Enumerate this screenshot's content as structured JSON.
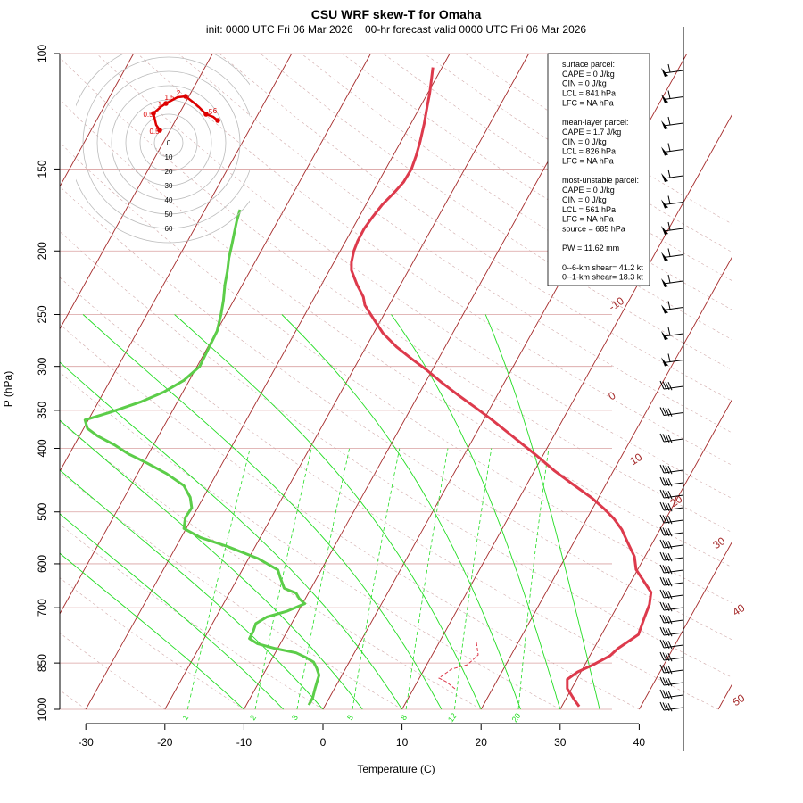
{
  "chart_data": {
    "type": "line",
    "title": "CSU WRF skew-T for Omaha",
    "subtitle": "init: 0000 UTC Fri 06 Mar 2026    00-hr forecast valid 0000 UTC Fri 06 Mar 2026",
    "xlabel": "Temperature (C)",
    "ylabel": "P (hPa)",
    "x_ticks": [
      "-30",
      "-20",
      "-10",
      "0",
      "10",
      "20",
      "30",
      "40"
    ],
    "p_ticks": [
      "100",
      "150",
      "200",
      "250",
      "300",
      "350",
      "400",
      "500",
      "600",
      "700",
      "850",
      "1000"
    ],
    "xlim": [
      -33,
      52
    ],
    "plim": [
      100,
      1000
    ],
    "series": [
      {
        "color": "#dd3a4c",
        "points": [
          [
            13.9,
            105
          ],
          [
            13.7,
            110
          ],
          [
            13.5,
            115
          ],
          [
            13.2,
            120
          ],
          [
            12.8,
            128
          ],
          [
            12.3,
            136
          ],
          [
            11.8,
            143
          ],
          [
            11.2,
            150
          ],
          [
            10.2,
            157
          ],
          [
            9,
            163
          ],
          [
            7.5,
            170
          ],
          [
            6.2,
            178
          ],
          [
            5.2,
            185
          ],
          [
            4.4,
            193
          ],
          [
            3.9,
            200
          ],
          [
            3.6,
            208
          ],
          [
            3.6,
            214
          ],
          [
            4.3,
            225
          ],
          [
            5.1,
            235
          ],
          [
            5.3,
            242
          ],
          [
            6.5,
            255
          ],
          [
            7.6,
            267
          ],
          [
            9.3,
            280
          ],
          [
            11.2,
            292
          ],
          [
            13,
            303
          ],
          [
            15.1,
            318
          ],
          [
            17,
            331
          ],
          [
            19.2,
            346
          ],
          [
            21.4,
            362
          ],
          [
            23.7,
            381
          ],
          [
            25.2,
            394
          ],
          [
            27,
            410
          ],
          [
            29.3,
            433
          ],
          [
            31.4,
            452
          ],
          [
            34,
            476
          ],
          [
            35.6,
            495
          ],
          [
            36.8,
            512
          ],
          [
            37.8,
            532
          ],
          [
            38.5,
            555
          ],
          [
            39.4,
            585
          ],
          [
            39.6,
            612
          ],
          [
            40.7,
            641
          ],
          [
            41.5,
            663
          ],
          [
            41.3,
            692
          ],
          [
            40.6,
            728
          ],
          [
            39.9,
            769
          ],
          [
            37.3,
            808
          ],
          [
            36.3,
            829
          ],
          [
            34.2,
            855
          ],
          [
            32.2,
            877
          ],
          [
            30.9,
            900
          ],
          [
            30.9,
            930
          ],
          [
            31.4,
            950
          ],
          [
            31.8,
            967
          ],
          [
            32.4,
            990
          ]
        ]
      },
      {
        "color": "#5ccd49",
        "points": [
          [
            -10.5,
            173
          ],
          [
            -10.9,
            180
          ],
          [
            -11.2,
            187
          ],
          [
            -11.5,
            195
          ],
          [
            -11.9,
            205
          ],
          [
            -12.1,
            215
          ],
          [
            -12.4,
            225
          ],
          [
            -12.6,
            238
          ],
          [
            -12.9,
            250
          ],
          [
            -13.4,
            265
          ],
          [
            -14.5,
            282
          ],
          [
            -15.6,
            300
          ],
          [
            -17.6,
            315
          ],
          [
            -20.1,
            328
          ],
          [
            -23.1,
            340
          ],
          [
            -27.1,
            353
          ],
          [
            -30.1,
            362
          ],
          [
            -29.8,
            373
          ],
          [
            -28.5,
            383
          ],
          [
            -26.4,
            395
          ],
          [
            -24.6,
            408
          ],
          [
            -22.3,
            421
          ],
          [
            -19.8,
            437
          ],
          [
            -17.6,
            456
          ],
          [
            -16.8,
            475
          ],
          [
            -16.6,
            493
          ],
          [
            -17.4,
            510
          ],
          [
            -17.6,
            530
          ],
          [
            -15.5,
            547
          ],
          [
            -12,
            565
          ],
          [
            -8.2,
            589
          ],
          [
            -5.7,
            613
          ],
          [
            -5.4,
            630
          ],
          [
            -4.9,
            654
          ],
          [
            -3.4,
            665
          ],
          [
            -3,
            678
          ],
          [
            -2.3,
            690
          ],
          [
            -4.6,
            709
          ],
          [
            -7.1,
            723
          ],
          [
            -8.5,
            740
          ],
          [
            -8.8,
            759
          ],
          [
            -9.3,
            780
          ],
          [
            -8.3,
            794
          ],
          [
            -6,
            808
          ],
          [
            -3.4,
            820
          ],
          [
            -2.2,
            833
          ],
          [
            -1.2,
            847
          ],
          [
            -0.8,
            865
          ],
          [
            -0.5,
            887
          ],
          [
            -0.7,
            903
          ],
          [
            -1,
            930
          ],
          [
            -1.3,
            960
          ],
          [
            -1.8,
            985
          ]
        ]
      }
    ],
    "isotherm_labels": [
      "-10",
      "0",
      "10",
      "20",
      "30",
      "40",
      "50"
    ],
    "mixing_ratio_labels": [
      "1",
      "2",
      "3",
      "5",
      "8",
      "12",
      "20"
    ],
    "hodograph": {
      "ring_labels": [
        "0",
        "10",
        "20",
        "30",
        "40",
        "50",
        "60"
      ],
      "height_labels": [
        "0.5",
        "0.5",
        "1",
        "1.5",
        "2",
        "5",
        "6"
      ]
    },
    "indices": {
      "lines": [
        "surface parcel:",
        "CAPE = 0 J/kg",
        "CIN = 0 J/kg",
        "LCL = 841 hPa",
        "LFC = NA hPa",
        "",
        "mean-layer parcel:",
        "CAPE = 1.7 J/kg",
        "CIN = 0 J/kg",
        "LCL = 826 hPa",
        "LFC = NA hPa",
        "",
        "most-unstable parcel:",
        "CAPE = 0 J/kg",
        "CIN = 0 J/kg",
        "LCL = 561 hPa",
        "LFC = NA hPa",
        "source = 685 hPa",
        "",
        "PW =  11.62 mm",
        "",
        "0--6-km shear= 41.2 kt",
        "0--1-km shear= 18.3 kt"
      ]
    },
    "colors": {
      "temperature": "#dd3a4c",
      "dewpoint": "#5ccd49",
      "isotherm": "#a52a2a",
      "isobar": "#d9a0a0",
      "moist_adiabat": "#22dd22",
      "mixing_ratio": "#22dd22",
      "hodograph": "#dd0000"
    }
  }
}
